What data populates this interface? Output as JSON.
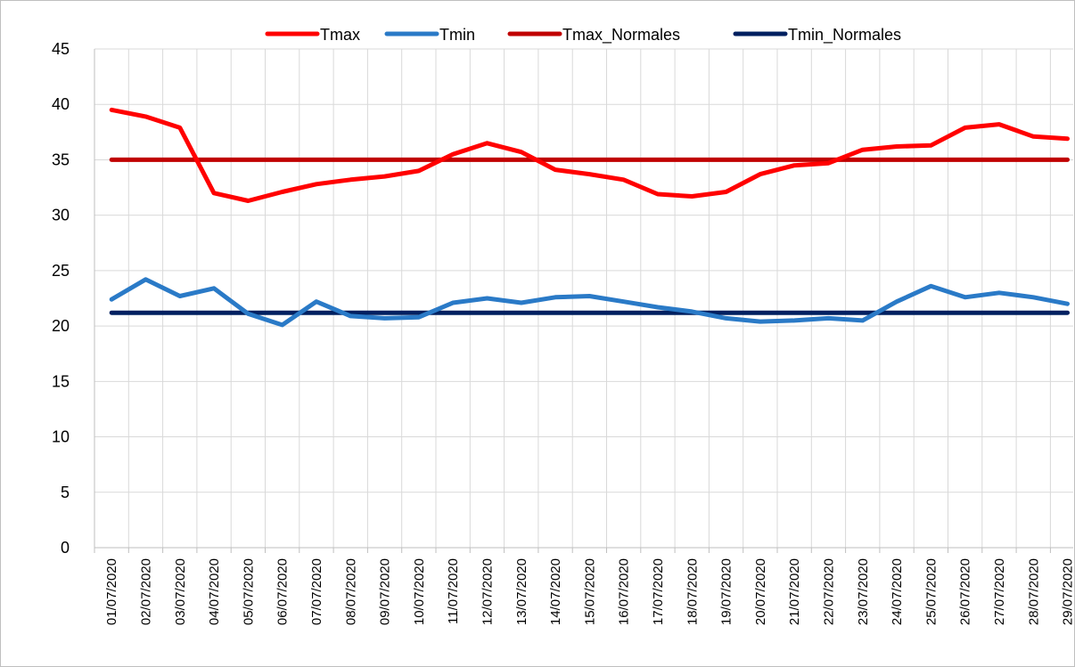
{
  "chart_data": {
    "type": "line",
    "categories": [
      "01/07/2020",
      "02/07/2020",
      "03/07/2020",
      "04/07/2020",
      "05/07/2020",
      "06/07/2020",
      "07/07/2020",
      "08/07/2020",
      "09/07/2020",
      "10/07/2020",
      "11/07/2020",
      "12/07/2020",
      "13/07/2020",
      "14/07/2020",
      "15/07/2020",
      "16/07/2020",
      "17/07/2020",
      "18/07/2020",
      "19/07/2020",
      "20/07/2020",
      "21/07/2020",
      "22/07/2020",
      "23/07/2020",
      "24/07/2020",
      "25/07/2020",
      "26/07/2020",
      "27/07/2020",
      "28/07/2020",
      "29/07/2020"
    ],
    "series": [
      {
        "name": "Tmax",
        "color": "#ff0000",
        "values": [
          39.5,
          38.9,
          37.9,
          32.0,
          31.3,
          32.1,
          32.8,
          33.2,
          33.5,
          34.0,
          35.5,
          36.5,
          35.7,
          34.1,
          33.7,
          33.2,
          31.9,
          31.7,
          32.1,
          33.7,
          34.5,
          34.7,
          35.9,
          36.2,
          36.3,
          37.9,
          38.2,
          37.1,
          36.9
        ]
      },
      {
        "name": "Tmin",
        "color": "#2a7ac7",
        "values": [
          22.4,
          24.2,
          22.7,
          23.4,
          21.1,
          20.1,
          22.2,
          20.9,
          20.7,
          20.8,
          22.1,
          22.5,
          22.1,
          22.6,
          22.7,
          22.2,
          21.7,
          21.3,
          20.7,
          20.4,
          20.5,
          20.7,
          20.5,
          22.2,
          23.6,
          22.6,
          23.0,
          22.6,
          22.0
        ]
      },
      {
        "name": "Tmax_Normales",
        "color": "#c00000",
        "values": [
          35,
          35,
          35,
          35,
          35,
          35,
          35,
          35,
          35,
          35,
          35,
          35,
          35,
          35,
          35,
          35,
          35,
          35,
          35,
          35,
          35,
          35,
          35,
          35,
          35,
          35,
          35,
          35,
          35
        ]
      },
      {
        "name": "Tmin_Normales",
        "color": "#002060",
        "values": [
          21.2,
          21.2,
          21.2,
          21.2,
          21.2,
          21.2,
          21.2,
          21.2,
          21.2,
          21.2,
          21.2,
          21.2,
          21.2,
          21.2,
          21.2,
          21.2,
          21.2,
          21.2,
          21.2,
          21.2,
          21.2,
          21.2,
          21.2,
          21.2,
          21.2,
          21.2,
          21.2,
          21.2,
          21.2
        ]
      }
    ],
    "ylim": [
      0,
      45
    ],
    "yticks": [
      0,
      5,
      10,
      15,
      20,
      25,
      30,
      35,
      40,
      45
    ],
    "grid": true,
    "legend": "top"
  }
}
